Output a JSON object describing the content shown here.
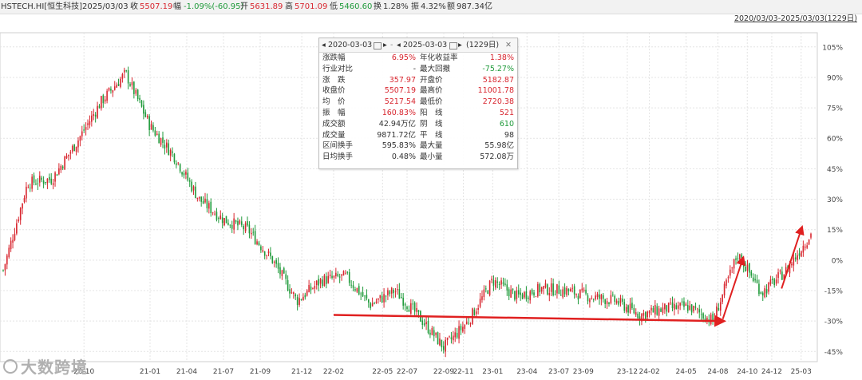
{
  "header": {
    "symbol": "HSTECH.HI[恒生科技]",
    "date": "2025/03/03",
    "close_label": "收",
    "close_value": "5507.19",
    "change_label": "幅",
    "change_value": "-1.09%(-60.95)",
    "open_label": "开",
    "open_value": "5631.89",
    "high_label": "高",
    "high_value": "5701.09",
    "low_label": "低",
    "low_value": "5460.60",
    "turnover_label": "换",
    "turnover_value": "1.28%",
    "amplitude_label": "振",
    "amplitude_value": "4.32%",
    "amount_label": "额",
    "amount_value": "987.34亿"
  },
  "range_link": "2020/03/03-2025/03/03(1229日)",
  "stats": {
    "start_date": "2020-03-03",
    "end_date": "2025-03-03",
    "days": "(1229日)",
    "rows": [
      {
        "l1": "涨跌幅",
        "v1": "6.95%",
        "c1": "red",
        "l2": "年化收益率",
        "v2": "1.38%",
        "c2": "red"
      },
      {
        "l1": "行业对比",
        "v1": "-",
        "c1": "",
        "l2": "最大回撤",
        "v2": "-75.27%",
        "c2": "green"
      },
      {
        "l1": "涨　跌",
        "v1": "357.97",
        "c1": "red",
        "l2": "开盘价",
        "v2": "5182.87",
        "c2": "red"
      },
      {
        "l1": "收盘价",
        "v1": "5507.19",
        "c1": "red",
        "l2": "最高价",
        "v2": "11001.78",
        "c2": "red"
      },
      {
        "l1": "均　价",
        "v1": "5217.54",
        "c1": "red",
        "l2": "最低价",
        "v2": "2720.38",
        "c2": "red"
      },
      {
        "l1": "振　幅",
        "v1": "160.83%",
        "c1": "red",
        "l2": "阳　线",
        "v2": "521",
        "c2": "red"
      },
      {
        "l1": "成交额",
        "v1": "42.94万亿",
        "c1": "",
        "l2": "阴　线",
        "v2": "610",
        "c2": "green"
      },
      {
        "l1": "成交量",
        "v1": "9871.72亿",
        "c1": "",
        "l2": "平　线",
        "v2": "98",
        "c2": ""
      },
      {
        "l1": "区间换手",
        "v1": "595.83%",
        "c1": "",
        "l2": "最大量",
        "v2": "55.98亿",
        "c2": ""
      },
      {
        "l1": "日均换手",
        "v1": "0.48%",
        "c1": "",
        "l2": "最小量",
        "v2": "572.08万",
        "c2": ""
      }
    ]
  },
  "watermark": "大数跨境",
  "colors": {
    "up": "#d8262f",
    "down": "#1f9a3a",
    "arrow": "#e02020",
    "grid": "#e4e4e4"
  },
  "chart_data": {
    "type": "line",
    "title": "",
    "xlabel": "",
    "ylabel": "",
    "y_unit": "%",
    "ylim": [
      -50,
      112
    ],
    "y_ticks": [
      105,
      90,
      75,
      60,
      45,
      30,
      15,
      0,
      -15,
      -30,
      -45
    ],
    "x_ticks": [
      "20-10",
      "21-01",
      "21-04",
      "21-07",
      "21-09",
      "21-12",
      "22-02",
      "22-05",
      "22-07",
      "22-09",
      "22-11",
      "23-01",
      "23-04",
      "23-07",
      "23-09",
      "23-12",
      "24-02",
      "24-05",
      "24-08",
      "24-10",
      "24-12",
      "25-03"
    ],
    "x_tick_idx": [
      3.3,
      6.0,
      7.5,
      9.0,
      10.5,
      12.2,
      13.5,
      15.5,
      16.5,
      18.0,
      18.8,
      20.0,
      21.4,
      22.7,
      23.7,
      25.5,
      26.4,
      27.9,
      29.2,
      30.4,
      31.4,
      32.6
    ],
    "series": [
      {
        "values": [
          -5,
          38,
          40,
          58,
          78,
          92,
          66,
          51,
          30,
          20,
          15,
          0,
          -20,
          -10,
          -8,
          -22,
          -15,
          -28,
          -43,
          -30,
          -10,
          -18,
          -14,
          -15,
          -18,
          -20,
          -27,
          -24,
          -23,
          -30,
          3,
          -16,
          -5,
          13
        ]
      }
    ],
    "grid": true,
    "legend": "none"
  }
}
